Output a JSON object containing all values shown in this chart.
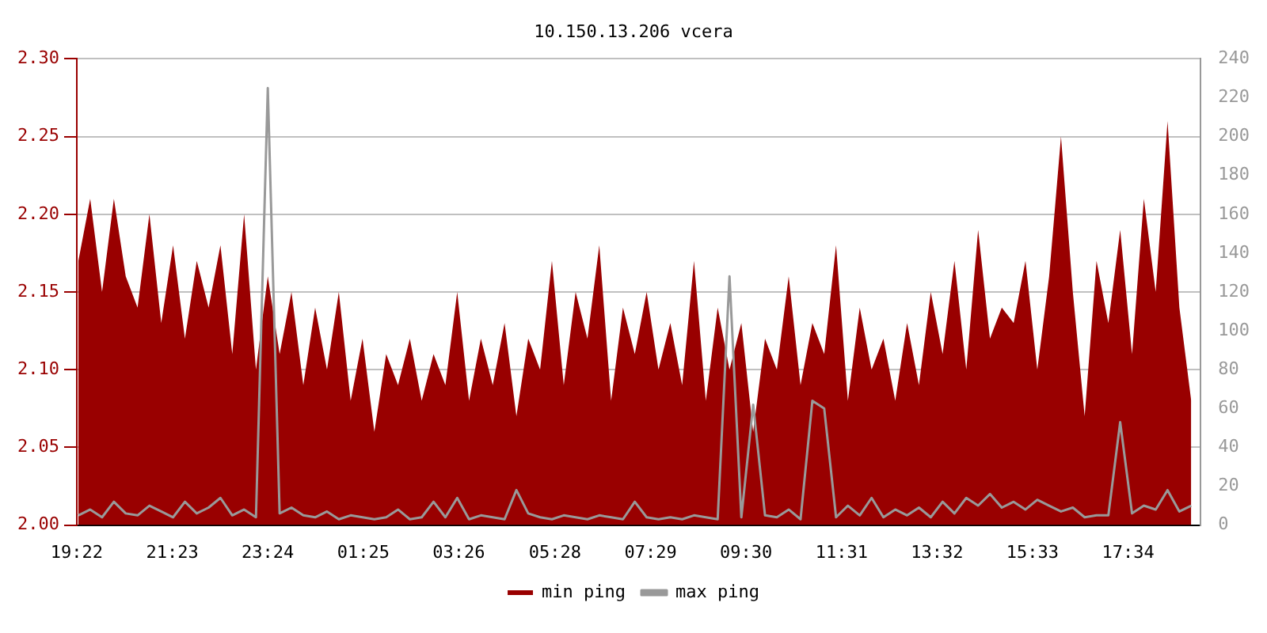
{
  "chart_data": {
    "type": "area",
    "title": "10.150.13.206 vcera",
    "legend": "bottom",
    "grid": "y",
    "marker": "none",
    "x": [
      "--01-01T19:24",
      "--01-01T19:39",
      "--01-01T19:54",
      "--01-01T20:09",
      "--01-01T20:24",
      "--01-01T20:39",
      "--01-01T20:54",
      "--01-01T21:09",
      "--01-01T21:24",
      "--01-01T21:39",
      "--01-01T21:54",
      "--01-01T22:09",
      "--01-01T22:24",
      "--01-01T22:39",
      "--01-01T22:54",
      "--01-01T23:09",
      "--01-01T23:24",
      "--01-01T23:39",
      "--01-01T23:54",
      "--01-02T00:09",
      "--01-02T00:24",
      "--01-02T00:39",
      "--01-02T00:54",
      "--01-02T01:09",
      "--01-02T01:24",
      "--01-02T01:39",
      "--01-02T01:54",
      "--01-02T02:09",
      "--01-02T02:24",
      "--01-02T02:39",
      "--01-02T02:54",
      "--01-02T03:09",
      "--01-02T03:24",
      "--01-02T03:39",
      "--01-02T03:54",
      "--01-02T04:09",
      "--01-02T04:24",
      "--01-02T04:39",
      "--01-02T04:54",
      "--01-02T05:09",
      "--01-02T05:24",
      "--01-02T05:39",
      "--01-02T05:54",
      "--01-02T06:09",
      "--01-02T06:24",
      "--01-02T06:39",
      "--01-02T06:54",
      "--01-02T07:09",
      "--01-02T07:24",
      "--01-02T07:39",
      "--01-02T07:54",
      "--01-02T08:09",
      "--01-02T08:24",
      "--01-02T08:39",
      "--01-02T08:54",
      "--01-02T09:09",
      "--01-02T09:24",
      "--01-02T09:39",
      "--01-02T09:54",
      "--01-02T10:09",
      "--01-02T10:24",
      "--01-02T10:39",
      "--01-02T10:54",
      "--01-02T11:09",
      "--01-02T11:24",
      "--01-02T11:39",
      "--01-02T11:54",
      "--01-02T12:09",
      "--01-02T12:24",
      "--01-02T12:39",
      "--01-02T12:54",
      "--01-02T13:09",
      "--01-02T13:24",
      "--01-02T13:39",
      "--01-02T13:54",
      "--01-02T14:09",
      "--01-02T14:24",
      "--01-02T14:39",
      "--01-02T14:54",
      "--01-02T15:09",
      "--01-02T15:24",
      "--01-02T15:39",
      "--01-02T15:54",
      "--01-02T16:09",
      "--01-02T16:24",
      "--01-02T16:39",
      "--01-02T16:54",
      "--01-02T17:09",
      "--01-02T17:24",
      "--01-02T17:39",
      "--01-02T17:54",
      "--01-02T18:09",
      "--01-02T18:24",
      "--01-02T18:39",
      "--01-02T18:54"
    ],
    "xlim": [
      "--01-01T19:22",
      "--01-02T19:06"
    ],
    "xticks": [
      {
        "value": "--01-01T19:22",
        "label": "19:22"
      },
      {
        "value": "--01-01T21:23",
        "label": "21:23"
      },
      {
        "value": "--01-01T23:24",
        "label": "23:24"
      },
      {
        "value": "--01-02T01:25",
        "label": "01:25"
      },
      {
        "value": "--01-02T03:26",
        "label": "03:26"
      },
      {
        "value": "--01-02T05:28",
        "label": "05:28"
      },
      {
        "value": "--01-02T07:29",
        "label": "07:29"
      },
      {
        "value": "--01-02T09:30",
        "label": "09:30"
      },
      {
        "value": "--01-02T11:31",
        "label": "11:31"
      },
      {
        "value": "--01-02T13:32",
        "label": "13:32"
      },
      {
        "value": "--01-02T15:33",
        "label": "15:33"
      },
      {
        "value": "--01-02T17:34",
        "label": "17:34"
      }
    ],
    "ylim": [
      2.0,
      2.3
    ],
    "yticks": [
      {
        "value": 2.0,
        "label": "2.00"
      },
      {
        "value": 2.05,
        "label": "2.05"
      },
      {
        "value": 2.1,
        "label": "2.10"
      },
      {
        "value": 2.15,
        "label": "2.15"
      },
      {
        "value": 2.2,
        "label": "2.20"
      },
      {
        "value": 2.25,
        "label": "2.25"
      },
      {
        "value": 2.3,
        "label": "2.30"
      }
    ],
    "y2lim": [
      0,
      240
    ],
    "y2ticks": [
      0,
      20,
      40,
      60,
      80,
      100,
      120,
      140,
      160,
      180,
      200,
      220,
      240
    ],
    "series": [
      {
        "name": "min ping",
        "color": "#990000",
        "values": [
          2.17,
          2.21,
          2.15,
          2.21,
          2.16,
          2.14,
          2.2,
          2.13,
          2.18,
          2.12,
          2.17,
          2.14,
          2.18,
          2.11,
          2.2,
          2.1,
          2.16,
          2.11,
          2.15,
          2.09,
          2.14,
          2.1,
          2.15,
          2.08,
          2.12,
          2.06,
          2.11,
          2.09,
          2.12,
          2.08,
          2.11,
          2.09,
          2.15,
          2.08,
          2.12,
          2.09,
          2.13,
          2.07,
          2.12,
          2.1,
          2.17,
          2.09,
          2.15,
          2.12,
          2.18,
          2.08,
          2.14,
          2.11,
          2.15,
          2.1,
          2.13,
          2.09,
          2.17,
          2.08,
          2.14,
          2.1,
          2.13,
          2.06,
          2.12,
          2.1,
          2.16,
          2.09,
          2.13,
          2.11,
          2.18,
          2.08,
          2.14,
          2.1,
          2.12,
          2.08,
          2.13,
          2.09,
          2.15,
          2.11,
          2.17,
          2.1,
          2.19,
          2.12,
          2.14,
          2.13,
          2.17,
          2.1,
          2.16,
          2.25,
          2.15,
          2.07,
          2.17,
          2.13,
          2.19,
          2.11,
          2.21,
          2.15,
          2.26,
          2.14,
          2.08
        ]
      },
      {
        "name": "max ping",
        "type": "line",
        "axis": "y2",
        "color": "#999999",
        "values": [
          5,
          8,
          4,
          12,
          6,
          5,
          10,
          7,
          4,
          12,
          6,
          9,
          14,
          5,
          8,
          4,
          225,
          6,
          9,
          5,
          4,
          7,
          3,
          5,
          4,
          3,
          4,
          8,
          3,
          4,
          12,
          4,
          14,
          3,
          5,
          4,
          3,
          18,
          6,
          4,
          3,
          5,
          4,
          3,
          5,
          4,
          3,
          12,
          4,
          3,
          4,
          3,
          5,
          4,
          3,
          128,
          4,
          62,
          5,
          4,
          8,
          3,
          64,
          60,
          4,
          10,
          5,
          14,
          4,
          8,
          5,
          9,
          4,
          12,
          6,
          14,
          10,
          16,
          9,
          12,
          8,
          13,
          10,
          7,
          9,
          4,
          5,
          5,
          53,
          6,
          10,
          8,
          18,
          7,
          10
        ]
      }
    ]
  }
}
